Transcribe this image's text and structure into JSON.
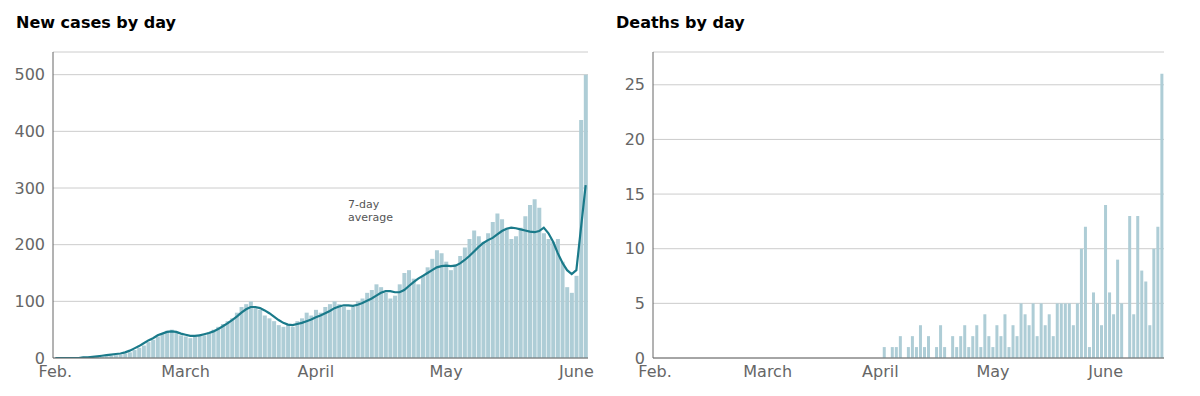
{
  "chart_data": [
    {
      "type": "bar",
      "title": "New cases by day",
      "categories": [
        "Feb.",
        null,
        null,
        null,
        null,
        null,
        null,
        null,
        null,
        null,
        null,
        null,
        null,
        null,
        null,
        null,
        null,
        null,
        null,
        null,
        null,
        null,
        null,
        null,
        null,
        null,
        null,
        null,
        "March",
        null,
        null,
        null,
        null,
        null,
        null,
        null,
        null,
        null,
        null,
        null,
        null,
        null,
        null,
        null,
        null,
        null,
        null,
        null,
        null,
        null,
        null,
        null,
        null,
        null,
        null,
        null,
        "April",
        null,
        null,
        null,
        null,
        null,
        null,
        null,
        null,
        null,
        null,
        null,
        null,
        null,
        null,
        null,
        null,
        null,
        null,
        null,
        null,
        null,
        null,
        null,
        null,
        null,
        null,
        null,
        "May",
        null,
        null,
        null,
        null,
        null,
        null,
        null,
        null,
        null,
        null,
        null,
        null,
        null,
        null,
        null,
        null,
        null,
        null,
        null,
        null,
        null,
        null,
        null,
        null,
        null,
        null,
        null,
        "June",
        null,
        null
      ],
      "series": [
        {
          "type": "bar",
          "color": "#aecdd6",
          "values": [
            0,
            0,
            0,
            1,
            0,
            1,
            2,
            1,
            2,
            3,
            2,
            3,
            4,
            5,
            6,
            8,
            10,
            14,
            18,
            22,
            28,
            32,
            38,
            42,
            48,
            50,
            45,
            40,
            38,
            35,
            38,
            42,
            40,
            45,
            50,
            55,
            60,
            65,
            70,
            80,
            90,
            95,
            100,
            90,
            85,
            75,
            70,
            65,
            58,
            55,
            60,
            55,
            65,
            70,
            80,
            75,
            85,
            80,
            90,
            95,
            100,
            95,
            90,
            85,
            90,
            100,
            105,
            115,
            120,
            130,
            125,
            115,
            105,
            110,
            130,
            150,
            155,
            140,
            130,
            145,
            160,
            175,
            190,
            185,
            170,
            155,
            165,
            180,
            195,
            210,
            225,
            215,
            205,
            220,
            240,
            255,
            245,
            230,
            210,
            215,
            230,
            250,
            270,
            280,
            265,
            220,
            210,
            205,
            210,
            170,
            125,
            115,
            145,
            420,
            500
          ]
        },
        {
          "type": "line",
          "color": "#1a7a8a",
          "values": [
            0,
            0,
            0,
            0,
            0,
            0,
            1,
            1,
            2,
            3,
            4,
            5,
            6,
            7,
            8,
            10,
            13,
            17,
            21,
            26,
            31,
            35,
            40,
            43,
            46,
            47,
            46,
            43,
            41,
            39,
            39,
            40,
            42,
            44,
            47,
            51,
            56,
            61,
            67,
            73,
            80,
            86,
            90,
            90,
            88,
            84,
            79,
            73,
            67,
            62,
            59,
            58,
            60,
            62,
            65,
            68,
            72,
            75,
            79,
            83,
            88,
            91,
            93,
            93,
            92,
            94,
            97,
            101,
            105,
            110,
            115,
            118,
            118,
            116,
            116,
            120,
            127,
            134,
            140,
            145,
            150,
            155,
            160,
            162,
            163,
            162,
            163,
            167,
            173,
            180,
            188,
            196,
            203,
            208,
            212,
            218,
            224,
            228,
            230,
            229,
            227,
            225,
            223,
            222,
            224,
            230,
            220,
            205,
            185,
            168,
            155,
            148,
            155,
            230,
            305
          ]
        }
      ],
      "ylim": [
        0,
        540
      ],
      "yticks": [
        0,
        100,
        200,
        300,
        400,
        500
      ],
      "grid": true,
      "annotations": [
        "7-day\naverage"
      ]
    },
    {
      "type": "bar",
      "title": "Deaths by day",
      "categories": [
        "Feb.",
        null,
        null,
        null,
        null,
        null,
        null,
        null,
        null,
        null,
        null,
        null,
        null,
        null,
        null,
        null,
        null,
        null,
        null,
        null,
        null,
        null,
        null,
        null,
        null,
        null,
        null,
        null,
        "March",
        null,
        null,
        null,
        null,
        null,
        null,
        null,
        null,
        null,
        null,
        null,
        null,
        null,
        null,
        null,
        null,
        null,
        null,
        null,
        null,
        null,
        null,
        null,
        null,
        null,
        null,
        null,
        "April",
        null,
        null,
        null,
        null,
        null,
        null,
        null,
        null,
        null,
        null,
        null,
        null,
        null,
        null,
        null,
        null,
        null,
        null,
        null,
        null,
        null,
        null,
        null,
        null,
        null,
        null,
        null,
        "May",
        null,
        null,
        null,
        null,
        null,
        null,
        null,
        null,
        null,
        null,
        null,
        null,
        null,
        null,
        null,
        null,
        null,
        null,
        null,
        null,
        null,
        null,
        null,
        null,
        null,
        null,
        null,
        "June",
        null,
        null,
        null,
        null,
        null,
        null,
        null,
        null,
        null,
        null,
        null,
        null,
        null,
        null
      ],
      "series": [
        {
          "type": "bar",
          "color": "#aecdd6",
          "values": [
            0,
            0,
            0,
            0,
            0,
            0,
            0,
            0,
            0,
            0,
            0,
            0,
            0,
            0,
            0,
            0,
            0,
            0,
            0,
            0,
            0,
            0,
            0,
            0,
            0,
            0,
            0,
            0,
            0,
            0,
            0,
            0,
            0,
            0,
            0,
            0,
            0,
            0,
            0,
            0,
            0,
            0,
            0,
            0,
            0,
            0,
            0,
            0,
            0,
            0,
            0,
            0,
            0,
            0,
            0,
            0,
            0,
            1,
            0,
            1,
            1,
            2,
            0,
            1,
            2,
            1,
            3,
            1,
            2,
            0,
            1,
            3,
            1,
            0,
            2,
            1,
            2,
            3,
            1,
            2,
            3,
            1,
            4,
            2,
            1,
            3,
            2,
            4,
            1,
            3,
            2,
            5,
            4,
            3,
            5,
            2,
            5,
            3,
            4,
            2,
            5,
            5,
            5,
            5,
            3,
            5,
            10,
            12,
            1,
            6,
            5,
            3,
            14,
            6,
            4,
            9,
            5,
            0,
            13,
            4,
            13,
            8,
            7,
            3,
            10,
            12,
            26
          ]
        }
      ],
      "ylim": [
        0,
        28
      ],
      "yticks": [
        0,
        5,
        10,
        15,
        20,
        25
      ],
      "grid": true
    }
  ]
}
